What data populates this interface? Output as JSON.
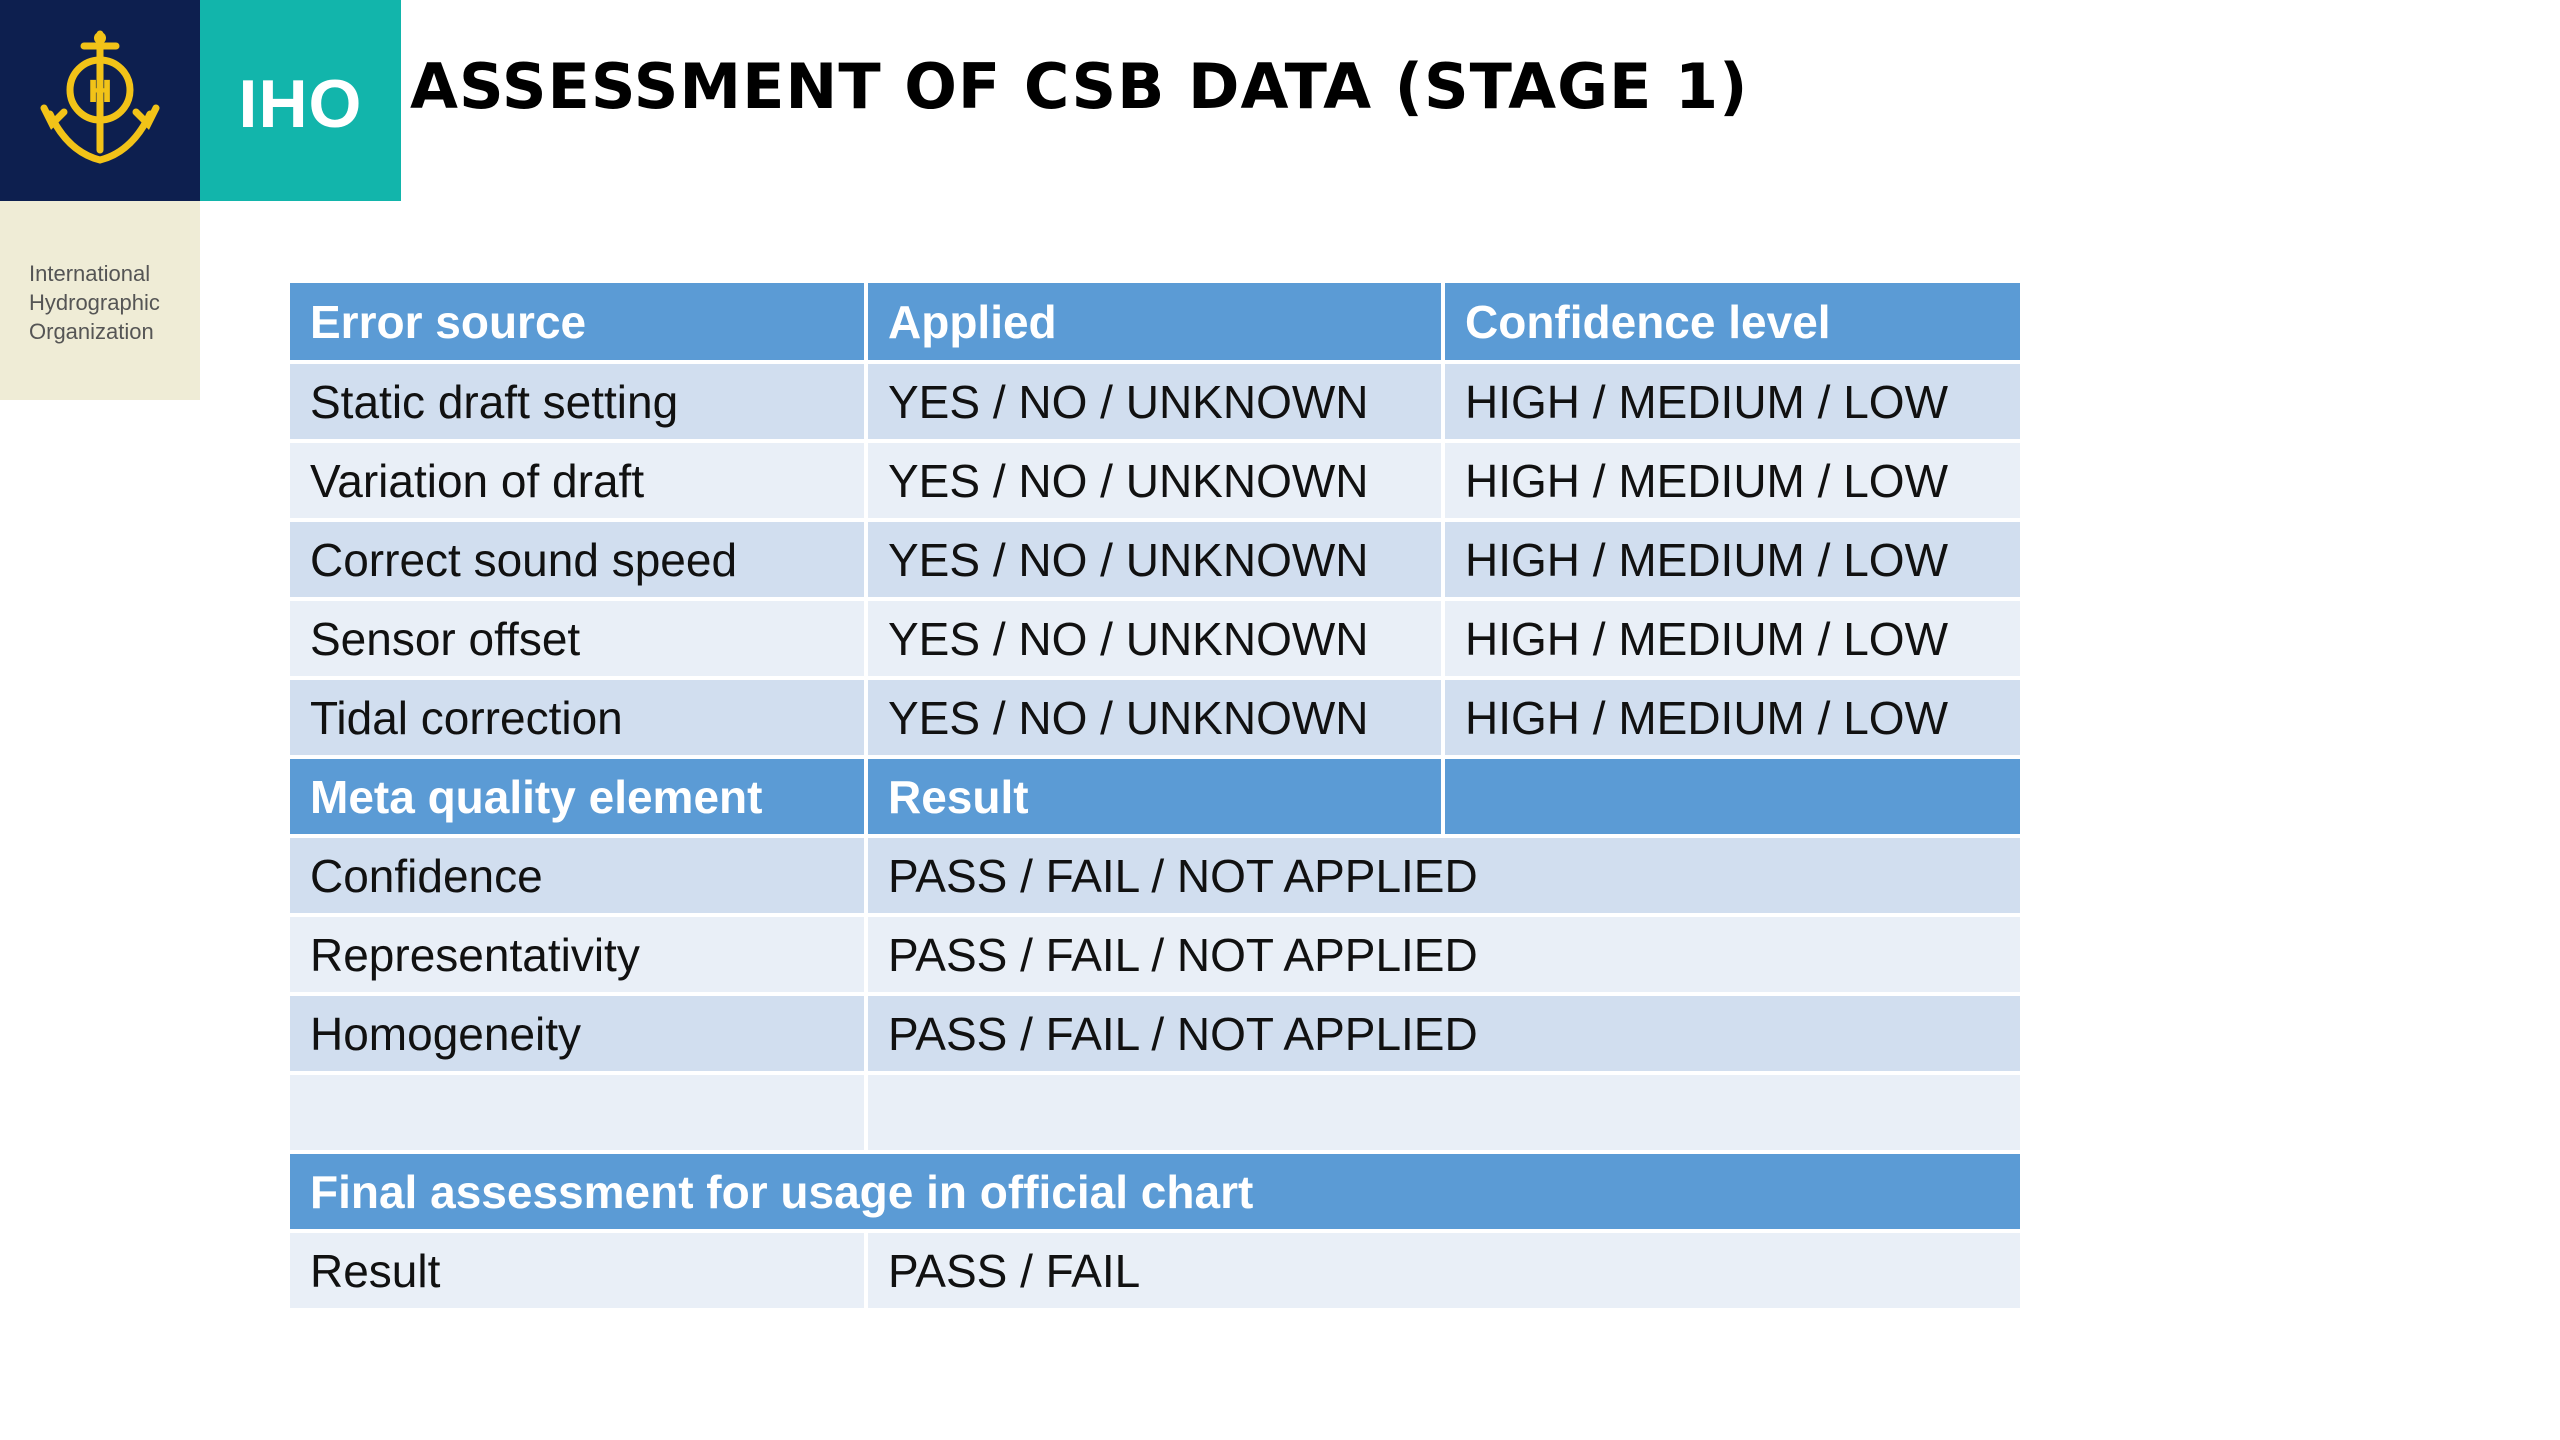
{
  "logo": {
    "acronym": "IHO",
    "org_name": [
      "International",
      "Hydrographic",
      "Organization"
    ],
    "colors": {
      "dark": "#0d1f4f",
      "teal": "#12b5ab",
      "cream": "#efecd6",
      "gold": "#f2c318"
    }
  },
  "title": "ASSESSMENT OF CSB DATA (STAGE 1)",
  "table": {
    "colors": {
      "header": "#5b9bd5",
      "row_odd": "#d1deef",
      "row_even": "#e9eff7"
    },
    "section1": {
      "headers": [
        "Error source",
        "Applied",
        "Confidence level"
      ],
      "rows": [
        [
          "Static draft setting",
          "YES / NO / UNKNOWN",
          "HIGH / MEDIUM / LOW"
        ],
        [
          "Variation of draft",
          "YES / NO / UNKNOWN",
          "HIGH / MEDIUM / LOW"
        ],
        [
          "Correct sound speed",
          "YES / NO / UNKNOWN",
          "HIGH / MEDIUM / LOW"
        ],
        [
          "Sensor offset",
          "YES / NO / UNKNOWN",
          "HIGH / MEDIUM / LOW"
        ],
        [
          "Tidal correction",
          "YES / NO / UNKNOWN",
          "HIGH / MEDIUM / LOW"
        ]
      ]
    },
    "section2": {
      "headers": [
        "Meta quality element",
        "Result",
        ""
      ],
      "rows": [
        [
          "Confidence",
          "PASS / FAIL / NOT APPLIED"
        ],
        [
          "Representativity",
          "PASS / FAIL / NOT APPLIED"
        ],
        [
          "Homogeneity",
          "PASS / FAIL / NOT APPLIED"
        ]
      ]
    },
    "section3": {
      "header": "Final assessment for usage in official chart",
      "rows": [
        [
          "Result",
          "PASS / FAIL"
        ]
      ]
    }
  }
}
